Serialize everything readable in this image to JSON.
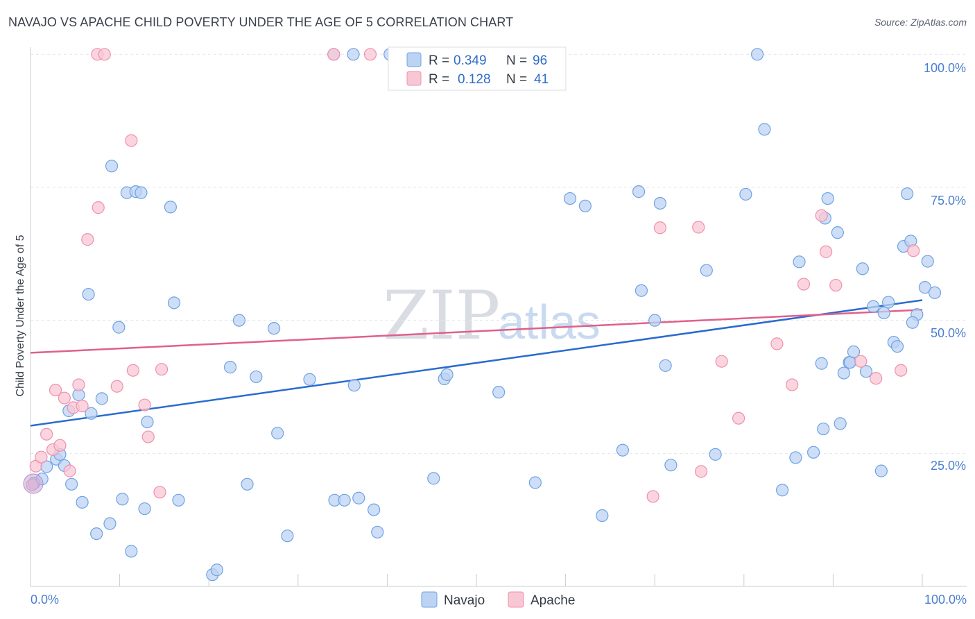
{
  "title": "NAVAJO VS APACHE CHILD POVERTY UNDER THE AGE OF 5 CORRELATION CHART",
  "source": "Source: ZipAtlas.com",
  "watermark": {
    "part1": "ZIP",
    "part2": "atlas"
  },
  "stats_legend": {
    "r_label": "R =",
    "n_label": "N =",
    "rows": [
      {
        "name": "Navajo",
        "r": "0.349",
        "n": "96",
        "color": "#6fa3e3"
      },
      {
        "name": "Apache",
        "r": "0.128",
        "n": "41",
        "color": "#f090ab"
      }
    ]
  },
  "chart_data": {
    "type": "scatter",
    "title": "NAVAJO VS APACHE CHILD POVERTY UNDER THE AGE OF 5 CORRELATION CHART",
    "xlabel": "",
    "ylabel": "Child Poverty Under the Age of 5",
    "xlim": [
      0,
      100
    ],
    "ylim": [
      0,
      102
    ],
    "x_tick_labels": [
      "0.0%",
      "100.0%"
    ],
    "y_ticks": [
      25,
      50,
      75,
      100
    ],
    "y_tick_labels": [
      "25.0%",
      "50.0%",
      "75.0%",
      "100.0%"
    ],
    "legend_position": "bottom-center",
    "series": [
      {
        "name": "Navajo",
        "color": "#6fa3e3",
        "fill": "#bcd3f3",
        "trend": {
          "x": [
            0,
            100
          ],
          "y": [
            30.2,
            53.8
          ],
          "color": "#2a6bd0"
        },
        "points": [
          [
            0.4,
            19.4
          ],
          [
            1.3,
            20.2
          ],
          [
            1.8,
            22.5
          ],
          [
            2.9,
            23.9
          ],
          [
            3.3,
            24.8
          ],
          [
            3.8,
            22.7
          ],
          [
            4.3,
            33
          ],
          [
            4.6,
            19.2
          ],
          [
            5.4,
            36
          ],
          [
            5.8,
            15.8
          ],
          [
            6.5,
            54.9
          ],
          [
            6.8,
            32.5
          ],
          [
            7.4,
            9.9
          ],
          [
            8.0,
            35.3
          ],
          [
            8.9,
            11.8
          ],
          [
            9.1,
            79
          ],
          [
            9.9,
            48.7
          ],
          [
            10.3,
            16.4
          ],
          [
            10.8,
            74
          ],
          [
            11.3,
            6.6
          ],
          [
            11.8,
            74.2
          ],
          [
            12.4,
            74
          ],
          [
            12.8,
            14.6
          ],
          [
            13.1,
            30.9
          ],
          [
            15.7,
            71.3
          ],
          [
            16.1,
            53.3
          ],
          [
            16.6,
            16.2
          ],
          [
            20.4,
            2.2
          ],
          [
            20.9,
            3.1
          ],
          [
            22.4,
            41.2
          ],
          [
            23.4,
            50
          ],
          [
            24.3,
            19.2
          ],
          [
            25.3,
            39.4
          ],
          [
            27.3,
            48.5
          ],
          [
            27.7,
            28.8
          ],
          [
            28.8,
            9.5
          ],
          [
            31.3,
            38.9
          ],
          [
            34,
            100
          ],
          [
            34.1,
            16.2
          ],
          [
            35.2,
            16.2
          ],
          [
            36.2,
            100
          ],
          [
            36.3,
            37.8
          ],
          [
            36.8,
            16.6
          ],
          [
            38.5,
            14.4
          ],
          [
            38.9,
            10.2
          ],
          [
            40.3,
            100
          ],
          [
            45.2,
            20.3
          ],
          [
            46.4,
            39
          ],
          [
            46.7,
            39.8
          ],
          [
            52.5,
            36.5
          ],
          [
            56.6,
            19.5
          ],
          [
            60.5,
            72.9
          ],
          [
            62.2,
            71.5
          ],
          [
            64.1,
            13.3
          ],
          [
            66.4,
            25.6
          ],
          [
            68.2,
            74.2
          ],
          [
            68.5,
            55.6
          ],
          [
            70,
            50
          ],
          [
            71.2,
            41.5
          ],
          [
            71.8,
            22.8
          ],
          [
            75.8,
            59.4
          ],
          [
            76.8,
            24.8
          ],
          [
            80.2,
            73.7
          ],
          [
            81.5,
            100
          ],
          [
            82.3,
            85.9
          ],
          [
            84.3,
            18.1
          ],
          [
            85.8,
            24.2
          ],
          [
            86.2,
            61
          ],
          [
            87.8,
            25.2
          ],
          [
            88.9,
            29.6
          ],
          [
            89.1,
            69.2
          ],
          [
            89.4,
            72.9
          ],
          [
            90.5,
            66.5
          ],
          [
            90.8,
            30.6
          ],
          [
            91.2,
            40.1
          ],
          [
            91.8,
            42.1
          ],
          [
            91.9,
            42.1
          ],
          [
            92.3,
            44.1
          ],
          [
            93.3,
            59.7
          ],
          [
            93.7,
            40.4
          ],
          [
            94.5,
            52.6
          ],
          [
            95.4,
            21.7
          ],
          [
            95.7,
            51.4
          ],
          [
            96.2,
            53.4
          ],
          [
            96.8,
            45.9
          ],
          [
            97.2,
            45.1
          ],
          [
            97.9,
            63.9
          ],
          [
            98.3,
            73.8
          ],
          [
            98.7,
            64.9
          ],
          [
            99.4,
            51.1
          ],
          [
            100.3,
            56.2
          ],
          [
            100.6,
            61.1
          ],
          [
            101.4,
            55.2
          ],
          [
            98.9,
            49.6
          ],
          [
            88.7,
            41.9
          ],
          [
            70.6,
            72
          ]
        ]
      },
      {
        "name": "Apache",
        "color": "#f090ab",
        "fill": "#f8c7d5",
        "trend": {
          "x": [
            0,
            100
          ],
          "y": [
            43.9,
            52
          ],
          "color": "#e0608a"
        },
        "points": [
          [
            0.2,
            19.1
          ],
          [
            0.6,
            22.6
          ],
          [
            1.2,
            24.3
          ],
          [
            1.8,
            28.6
          ],
          [
            2.5,
            25.7
          ],
          [
            2.8,
            36.9
          ],
          [
            3.3,
            26.5
          ],
          [
            3.8,
            35.4
          ],
          [
            4.4,
            21.7
          ],
          [
            4.8,
            33.6
          ],
          [
            5.4,
            37.9
          ],
          [
            5.8,
            33.9
          ],
          [
            6.4,
            65.2
          ],
          [
            7.5,
            100
          ],
          [
            7.6,
            71.2
          ],
          [
            8.3,
            100
          ],
          [
            9.7,
            37.6
          ],
          [
            11.3,
            83.8
          ],
          [
            11.5,
            40.6
          ],
          [
            12.8,
            34.1
          ],
          [
            13.2,
            28.1
          ],
          [
            14.5,
            17.7
          ],
          [
            14.7,
            40.8
          ],
          [
            34,
            100
          ],
          [
            38.1,
            100
          ],
          [
            69.8,
            16.9
          ],
          [
            70.6,
            67.4
          ],
          [
            74.9,
            67.5
          ],
          [
            75.2,
            21.6
          ],
          [
            77.5,
            42.3
          ],
          [
            79.4,
            31.6
          ],
          [
            83.7,
            45.6
          ],
          [
            85.4,
            37.9
          ],
          [
            86.7,
            56.8
          ],
          [
            88.7,
            69.7
          ],
          [
            89.2,
            62.9
          ],
          [
            90.3,
            56.6
          ],
          [
            93.1,
            42.3
          ],
          [
            94.8,
            39.1
          ],
          [
            97.6,
            40.6
          ],
          [
            99,
            63.1
          ]
        ]
      }
    ]
  }
}
